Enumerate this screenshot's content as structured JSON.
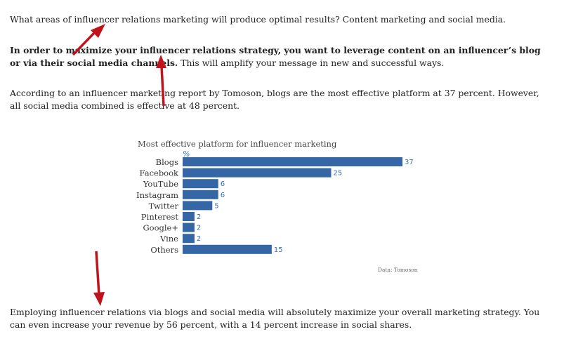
{
  "paragraphs": {
    "p1": "What areas of influencer relations marketing will produce optimal results? Content marketing and social media.",
    "p2_bold": "In order to maximize your influencer relations strategy, you want to leverage content on an influencer’s blog or via their social media channels.",
    "p2_rest": " This will amplify your message in new and successful ways.",
    "p3": "According to an influencer marketing report by Tomoson, blogs are the most effective platform at 37 percent. However, all social media combined is effective at 48 percent.",
    "p4": "Employing influencer relations via blogs and social media will absolutely maximize your overall marketing strategy. You can even increase your revenue by 56 percent, with a 14 percent increase in social shares."
  },
  "chart_data": {
    "type": "bar",
    "orientation": "horizontal",
    "title": "Most effective platform for influencer marketing",
    "unit": "%",
    "source": "Data: Tomoson",
    "categories": [
      "Blogs",
      "Facebook",
      "YouTube",
      "Instagram",
      "Twitter",
      "Pinterest",
      "Google+",
      "Vine",
      "Others"
    ],
    "values": [
      37,
      25,
      6,
      6,
      5,
      2,
      2,
      2,
      15
    ],
    "xlim": [
      0,
      37
    ],
    "grid": false,
    "bar_color": "#3566a6",
    "label_color": "#3a6fb0"
  },
  "annotations": {
    "arrow_color": "#c0141c"
  }
}
